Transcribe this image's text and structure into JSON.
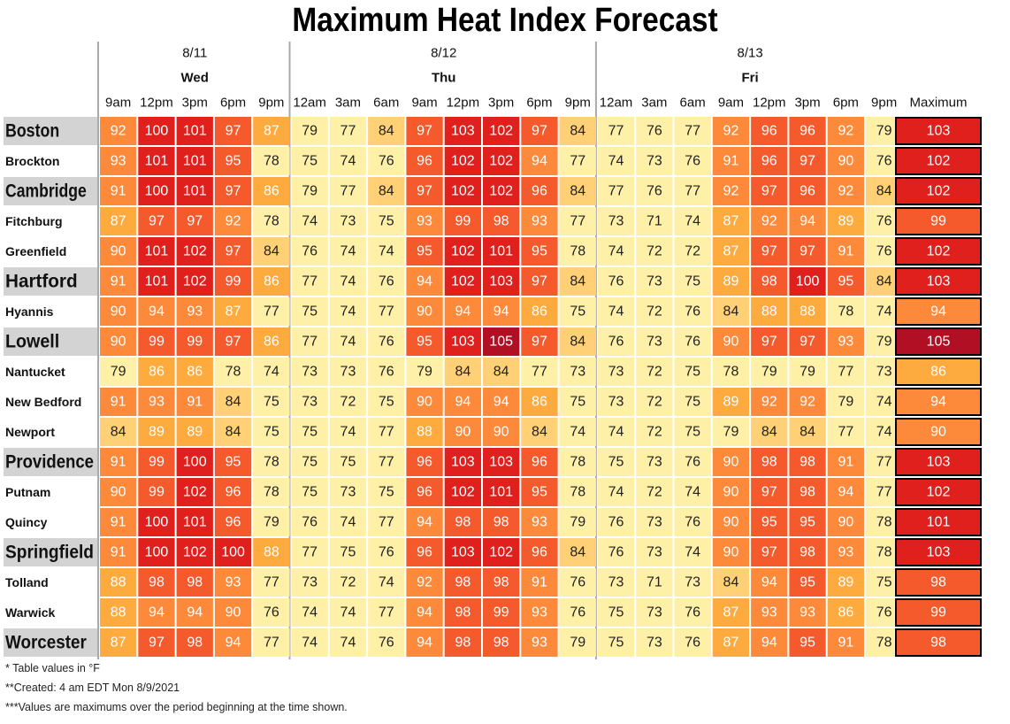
{
  "chart_data": {
    "type": "heatmap",
    "title": "Maximum Heat Index Forecast",
    "days": [
      {
        "date": "8/11",
        "weekday": "Wed",
        "times": [
          "9am",
          "12pm",
          "3pm",
          "6pm",
          "9pm"
        ]
      },
      {
        "date": "8/12",
        "weekday": "Thu",
        "times": [
          "12am",
          "3am",
          "6am",
          "9am",
          "12pm",
          "3pm",
          "6pm",
          "9pm"
        ]
      },
      {
        "date": "8/13",
        "weekday": "Fri",
        "times": [
          "12am",
          "3am",
          "6am",
          "9am",
          "12pm",
          "3pm",
          "6pm",
          "9pm"
        ]
      }
    ],
    "max_label": "Maximum",
    "rows": [
      {
        "city": "Boston",
        "major": true,
        "values": [
          92,
          100,
          101,
          97,
          87,
          79,
          77,
          84,
          97,
          103,
          102,
          97,
          84,
          77,
          76,
          77,
          92,
          96,
          96,
          92,
          79
        ],
        "max": 103
      },
      {
        "city": "Brockton",
        "major": false,
        "values": [
          93,
          101,
          101,
          95,
          78,
          75,
          74,
          76,
          96,
          102,
          102,
          94,
          77,
          74,
          73,
          76,
          91,
          96,
          97,
          90,
          76
        ],
        "max": 102
      },
      {
        "city": "Cambridge",
        "major": true,
        "values": [
          91,
          100,
          101,
          97,
          86,
          79,
          77,
          84,
          97,
          102,
          102,
          96,
          84,
          77,
          76,
          77,
          92,
          97,
          96,
          92,
          84
        ],
        "max": 102
      },
      {
        "city": "Fitchburg",
        "major": false,
        "values": [
          87,
          97,
          97,
          92,
          78,
          74,
          73,
          75,
          93,
          99,
          98,
          93,
          77,
          73,
          71,
          74,
          87,
          92,
          94,
          89,
          76
        ],
        "max": 99
      },
      {
        "city": "Greenfield",
        "major": false,
        "values": [
          90,
          101,
          102,
          97,
          84,
          76,
          74,
          74,
          95,
          102,
          101,
          95,
          78,
          74,
          72,
          72,
          87,
          97,
          97,
          91,
          76
        ],
        "max": 102
      },
      {
        "city": "Hartford",
        "major": true,
        "values": [
          91,
          101,
          102,
          99,
          86,
          77,
          74,
          76,
          94,
          102,
          103,
          97,
          84,
          76,
          73,
          75,
          89,
          98,
          100,
          95,
          84
        ],
        "max": 103
      },
      {
        "city": "Hyannis",
        "major": false,
        "values": [
          90,
          94,
          93,
          87,
          77,
          75,
          74,
          77,
          90,
          94,
          94,
          86,
          75,
          74,
          72,
          76,
          84,
          88,
          88,
          78,
          74
        ],
        "max": 94
      },
      {
        "city": "Lowell",
        "major": true,
        "values": [
          90,
          99,
          99,
          97,
          86,
          77,
          74,
          76,
          95,
          103,
          105,
          97,
          84,
          76,
          73,
          76,
          90,
          97,
          97,
          93,
          79
        ],
        "max": 105
      },
      {
        "city": "Nantucket",
        "major": false,
        "values": [
          79,
          86,
          86,
          78,
          74,
          73,
          73,
          76,
          79,
          84,
          84,
          77,
          73,
          73,
          72,
          75,
          78,
          79,
          79,
          77,
          73
        ],
        "max": 86
      },
      {
        "city": "New Bedford",
        "major": false,
        "values": [
          91,
          93,
          91,
          84,
          75,
          73,
          72,
          75,
          90,
          94,
          94,
          86,
          75,
          73,
          72,
          75,
          89,
          92,
          92,
          79,
          74
        ],
        "max": 94
      },
      {
        "city": "Newport",
        "major": false,
        "values": [
          84,
          89,
          89,
          84,
          75,
          75,
          74,
          77,
          88,
          90,
          90,
          84,
          74,
          74,
          72,
          75,
          79,
          84,
          84,
          77,
          74
        ],
        "max": 90
      },
      {
        "city": "Providence",
        "major": true,
        "values": [
          91,
          99,
          100,
          95,
          78,
          75,
          75,
          77,
          96,
          103,
          103,
          96,
          78,
          75,
          73,
          76,
          90,
          98,
          98,
          91,
          77
        ],
        "max": 103
      },
      {
        "city": "Putnam",
        "major": false,
        "values": [
          90,
          99,
          102,
          96,
          78,
          75,
          73,
          75,
          96,
          102,
          101,
          95,
          78,
          74,
          72,
          74,
          90,
          97,
          98,
          94,
          77
        ],
        "max": 102
      },
      {
        "city": "Quincy",
        "major": false,
        "values": [
          91,
          100,
          101,
          96,
          79,
          76,
          74,
          77,
          94,
          98,
          98,
          93,
          79,
          76,
          73,
          76,
          90,
          95,
          95,
          90,
          78
        ],
        "max": 101
      },
      {
        "city": "Springfield",
        "major": true,
        "values": [
          91,
          100,
          102,
          100,
          88,
          77,
          75,
          76,
          96,
          103,
          102,
          96,
          84,
          76,
          73,
          74,
          90,
          97,
          98,
          93,
          78
        ],
        "max": 103
      },
      {
        "city": "Tolland",
        "major": false,
        "values": [
          88,
          98,
          98,
          93,
          77,
          73,
          72,
          74,
          92,
          98,
          98,
          91,
          76,
          73,
          71,
          73,
          84,
          94,
          95,
          89,
          75
        ],
        "max": 98
      },
      {
        "city": "Warwick",
        "major": false,
        "values": [
          88,
          94,
          94,
          90,
          76,
          74,
          74,
          77,
          94,
          98,
          99,
          93,
          76,
          75,
          73,
          76,
          87,
          93,
          93,
          86,
          76
        ],
        "max": 99
      },
      {
        "city": "Worcester",
        "major": true,
        "values": [
          87,
          97,
          98,
          94,
          77,
          74,
          74,
          76,
          94,
          98,
          98,
          93,
          79,
          75,
          73,
          76,
          87,
          94,
          95,
          91,
          78
        ],
        "max": 98
      }
    ]
  },
  "notes": {
    "units": "* Table values in °F",
    "created": "**Created: 4 am EDT Mon 8/9/2021",
    "period": "***Values are maximums over the period beginning at the time shown."
  },
  "colors": {
    "below_80": "#fff0a8",
    "80_84": "#ffd076",
    "85_89": "#fdaa3e",
    "90_94": "#fc8a3a",
    "95_99": "#f45a2c",
    "100_104": "#e0201c",
    "105_plus": "#b00f24",
    "label_highlight": "#d3d3d3",
    "separator": "#aaaaaa"
  }
}
